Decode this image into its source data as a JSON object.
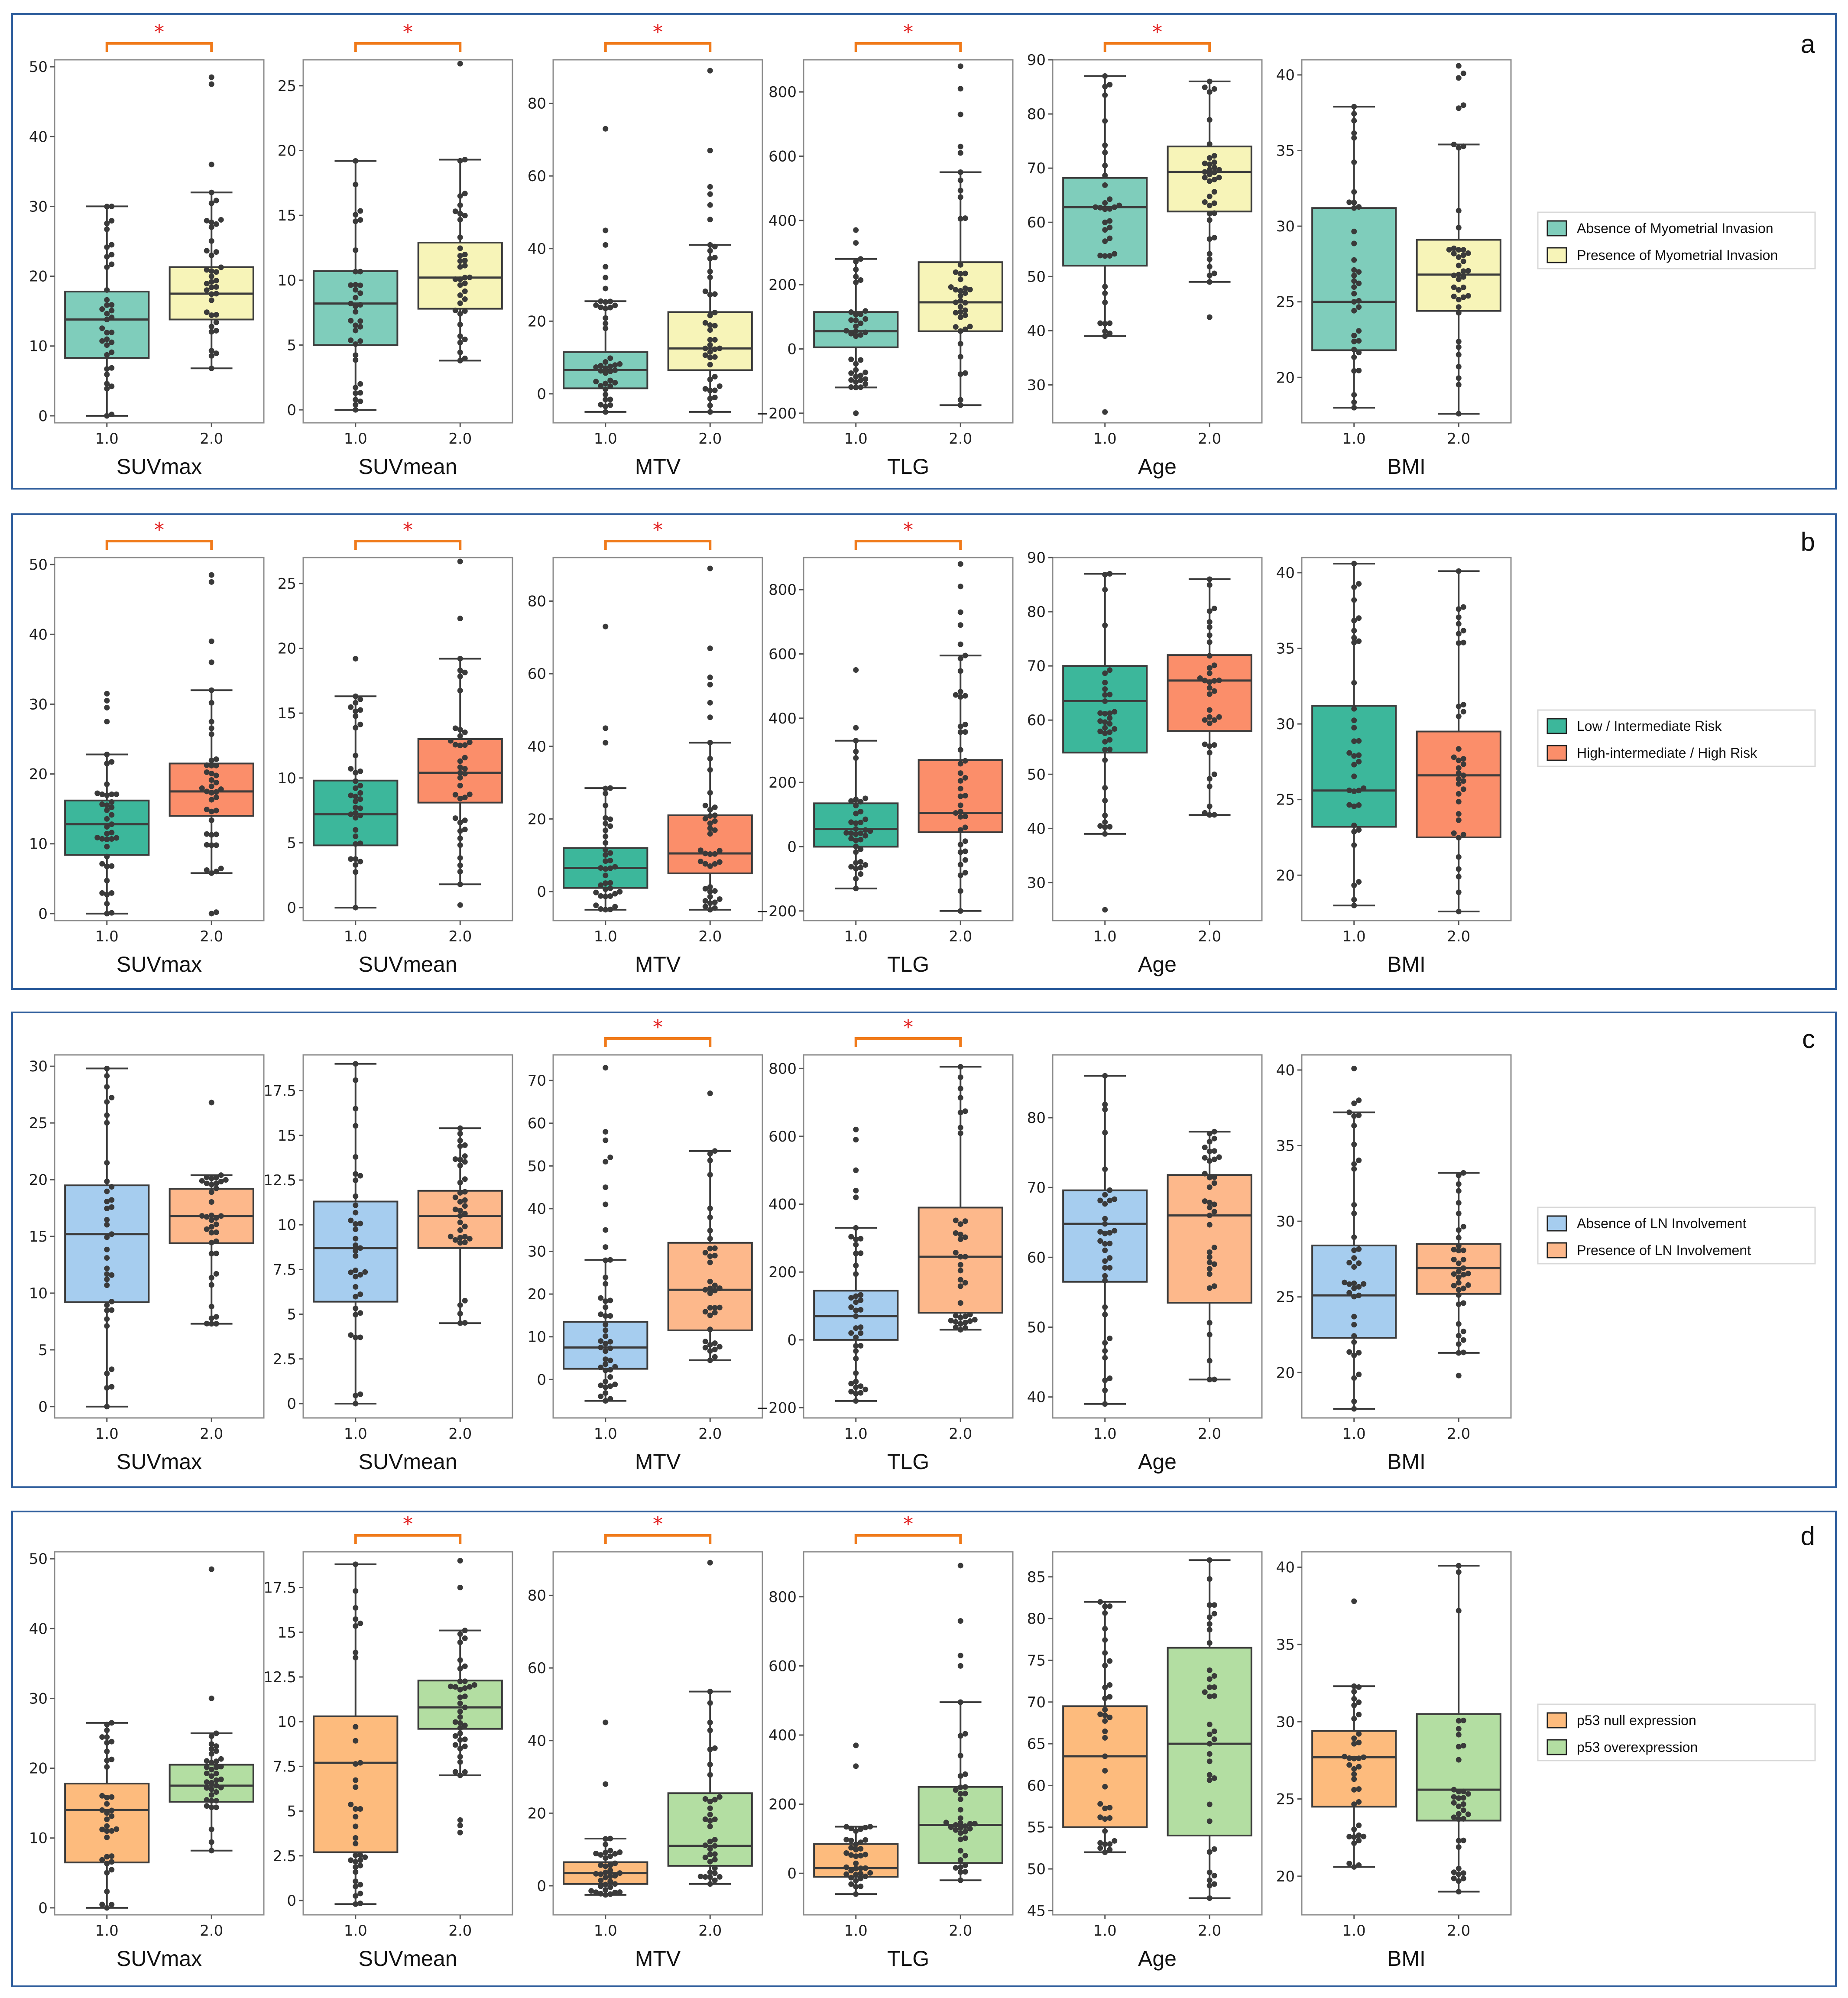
{
  "figure": {
    "rows": [
      {
        "letter": "a",
        "legend": [
          {
            "label": "Absence of Myometrial Invasion",
            "color": "#7fcdbb"
          },
          {
            "label": "Presence of Myometrial Invasion",
            "color": "#f7f4b8"
          }
        ],
        "significance": [
          true,
          true,
          true,
          true,
          true,
          false
        ]
      },
      {
        "letter": "b",
        "legend": [
          {
            "label": "Low / Intermediate Risk",
            "color": "#3cb79b"
          },
          {
            "label": "High-intermediate / High Risk",
            "color": "#fb8e6a"
          }
        ],
        "significance": [
          true,
          true,
          true,
          true,
          false,
          false
        ]
      },
      {
        "letter": "c",
        "legend": [
          {
            "label": "Absence of LN Involvement",
            "color": "#a6cdef"
          },
          {
            "label": "Presence of LN Involvement",
            "color": "#fdb88b"
          }
        ],
        "significance": [
          false,
          false,
          true,
          true,
          false,
          false
        ]
      },
      {
        "letter": "d",
        "legend": [
          {
            "label": "p53 null expression",
            "color": "#fdbb7d"
          },
          {
            "label": "p53 overexpression",
            "color": "#b3dea2"
          }
        ],
        "significance": [
          false,
          true,
          true,
          true,
          false,
          false
        ]
      }
    ],
    "star": "*",
    "category_labels": [
      "1.0",
      "2.0"
    ]
  },
  "chart_data": [
    {
      "row": "a",
      "type": "box",
      "title": "SUVmax",
      "categories": [
        "1.0",
        "2.0"
      ],
      "ylim": [
        -1,
        51
      ],
      "yticks": [
        0,
        10,
        20,
        30,
        40,
        50
      ],
      "boxes": [
        {
          "whislo": 0,
          "q1": 8.3,
          "med": 13.8,
          "q3": 17.8,
          "whishi": 30,
          "fliers": []
        },
        {
          "whislo": 6.8,
          "q1": 13.8,
          "med": 17.5,
          "q3": 21.3,
          "whishi": 32,
          "fliers": [
            36,
            47.5,
            48.5
          ]
        }
      ]
    },
    {
      "row": "a",
      "type": "box",
      "title": "SUVmean",
      "categories": [
        "1.0",
        "2.0"
      ],
      "ylim": [
        -1,
        27
      ],
      "yticks": [
        0,
        5,
        10,
        15,
        20,
        25
      ],
      "boxes": [
        {
          "whislo": 0,
          "q1": 5,
          "med": 8.2,
          "q3": 10.7,
          "whishi": 19.2,
          "fliers": []
        },
        {
          "whislo": 3.8,
          "q1": 7.8,
          "med": 10.2,
          "q3": 12.9,
          "whishi": 19.3,
          "fliers": [
            26.7
          ]
        }
      ]
    },
    {
      "row": "a",
      "type": "box",
      "title": "MTV",
      "categories": [
        "1.0",
        "2.0"
      ],
      "ylim": [
        -8,
        92
      ],
      "yticks": [
        0,
        20,
        40,
        60,
        80
      ],
      "boxes": [
        {
          "whislo": -5,
          "q1": 1.5,
          "med": 6.5,
          "q3": 11.5,
          "whishi": 25.5,
          "fliers": [
            29,
            32,
            35,
            41,
            45,
            73
          ]
        },
        {
          "whislo": -5,
          "q1": 6.5,
          "med": 12.5,
          "q3": 22.5,
          "whishi": 41,
          "fliers": [
            48,
            52,
            55,
            57,
            67,
            89
          ]
        }
      ]
    },
    {
      "row": "a",
      "type": "box",
      "title": "TLG",
      "categories": [
        "1.0",
        "2.0"
      ],
      "ylim": [
        -230,
        900
      ],
      "yticks": [
        -200,
        0,
        200,
        400,
        600,
        800
      ],
      "boxes": [
        {
          "whislo": -120,
          "q1": 5,
          "med": 55,
          "q3": 115,
          "whishi": 280,
          "fliers": [
            -200,
            330,
            370
          ]
        },
        {
          "whislo": -175,
          "q1": 55,
          "med": 145,
          "q3": 270,
          "whishi": 550,
          "fliers": [
            610,
            630,
            730,
            810,
            880
          ]
        }
      ]
    },
    {
      "row": "a",
      "type": "box",
      "title": "Age",
      "categories": [
        "1.0",
        "2.0"
      ],
      "ylim": [
        23,
        90
      ],
      "yticks": [
        30,
        40,
        50,
        60,
        70,
        80,
        90
      ],
      "boxes": [
        {
          "whislo": 39,
          "q1": 52,
          "med": 62.8,
          "q3": 68.2,
          "whishi": 87,
          "fliers": [
            25
          ]
        },
        {
          "whislo": 49,
          "q1": 62,
          "med": 69.3,
          "q3": 74,
          "whishi": 86,
          "fliers": [
            42.5
          ]
        }
      ]
    },
    {
      "row": "a",
      "type": "box",
      "title": "BMI",
      "categories": [
        "1.0",
        "2.0"
      ],
      "ylim": [
        17,
        41
      ],
      "yticks": [
        20,
        25,
        30,
        35,
        40
      ],
      "boxes": [
        {
          "whislo": 18,
          "q1": 21.8,
          "med": 25,
          "q3": 31.2,
          "whishi": 37.9,
          "fliers": []
        },
        {
          "whislo": 17.6,
          "q1": 24.4,
          "med": 26.8,
          "q3": 29.1,
          "whishi": 35.4,
          "fliers": [
            37.8,
            38,
            39.8,
            40.1,
            40.6
          ]
        }
      ]
    },
    {
      "row": "b",
      "type": "box",
      "title": "SUVmax",
      "categories": [
        "1.0",
        "2.0"
      ],
      "ylim": [
        -1,
        51
      ],
      "yticks": [
        0,
        10,
        20,
        30,
        40,
        50
      ],
      "boxes": [
        {
          "whislo": 0,
          "q1": 8.4,
          "med": 12.8,
          "q3": 16.2,
          "whishi": 22.8,
          "fliers": [
            27.5,
            29.5,
            30.5,
            31.5
          ]
        },
        {
          "whislo": 5.8,
          "q1": 14,
          "med": 17.5,
          "q3": 21.5,
          "whishi": 32,
          "fliers": [
            0,
            0.2,
            36,
            39,
            47.5,
            48.5
          ]
        }
      ]
    },
    {
      "row": "b",
      "type": "box",
      "title": "SUVmean",
      "categories": [
        "1.0",
        "2.0"
      ],
      "ylim": [
        -1,
        27
      ],
      "yticks": [
        0,
        5,
        10,
        15,
        20,
        25
      ],
      "boxes": [
        {
          "whislo": 0,
          "q1": 4.8,
          "med": 7.2,
          "q3": 9.8,
          "whishi": 16.3,
          "fliers": [
            19.2
          ]
        },
        {
          "whislo": 1.8,
          "q1": 8.1,
          "med": 10.4,
          "q3": 13,
          "whishi": 19.2,
          "fliers": [
            0.2,
            22.3,
            26.7
          ]
        }
      ]
    },
    {
      "row": "b",
      "type": "box",
      "title": "MTV",
      "categories": [
        "1.0",
        "2.0"
      ],
      "ylim": [
        -8,
        92
      ],
      "yticks": [
        0,
        20,
        40,
        60,
        80
      ],
      "boxes": [
        {
          "whislo": -5,
          "q1": 1,
          "med": 6.5,
          "q3": 12,
          "whishi": 28.5,
          "fliers": [
            41,
            45,
            73
          ]
        },
        {
          "whislo": -5,
          "q1": 5,
          "med": 10.5,
          "q3": 21,
          "whishi": 41,
          "fliers": [
            48,
            52,
            57,
            59,
            67,
            89
          ]
        }
      ]
    },
    {
      "row": "b",
      "type": "box",
      "title": "TLG",
      "categories": [
        "1.0",
        "2.0"
      ],
      "ylim": [
        -230,
        900
      ],
      "yticks": [
        -200,
        0,
        200,
        400,
        600,
        800
      ],
      "boxes": [
        {
          "whislo": -130,
          "q1": 0,
          "med": 55,
          "q3": 135,
          "whishi": 330,
          "fliers": [
            370,
            550
          ]
        },
        {
          "whislo": -200,
          "q1": 45,
          "med": 105,
          "q3": 270,
          "whishi": 595,
          "fliers": [
            630,
            690,
            730,
            810,
            880
          ]
        }
      ]
    },
    {
      "row": "b",
      "type": "box",
      "title": "Age",
      "categories": [
        "1.0",
        "2.0"
      ],
      "ylim": [
        23,
        90
      ],
      "yticks": [
        30,
        40,
        50,
        60,
        70,
        80,
        90
      ],
      "boxes": [
        {
          "whislo": 39,
          "q1": 54,
          "med": 63.5,
          "q3": 70,
          "whishi": 87,
          "fliers": [
            25
          ]
        },
        {
          "whislo": 42.5,
          "q1": 58,
          "med": 67.3,
          "q3": 72,
          "whishi": 86,
          "fliers": []
        }
      ]
    },
    {
      "row": "b",
      "type": "box",
      "title": "BMI",
      "categories": [
        "1.0",
        "2.0"
      ],
      "ylim": [
        17,
        41
      ],
      "yticks": [
        20,
        25,
        30,
        35,
        40
      ],
      "boxes": [
        {
          "whislo": 18,
          "q1": 23.2,
          "med": 25.6,
          "q3": 31.2,
          "whishi": 40.6,
          "fliers": []
        },
        {
          "whislo": 17.6,
          "q1": 22.5,
          "med": 26.6,
          "q3": 29.5,
          "whishi": 40.1,
          "fliers": []
        }
      ]
    },
    {
      "row": "c",
      "type": "box",
      "title": "SUVmax",
      "categories": [
        "1.0",
        "2.0"
      ],
      "ylim": [
        -1,
        31
      ],
      "yticks": [
        0,
        5,
        10,
        15,
        20,
        25,
        30
      ],
      "boxes": [
        {
          "whislo": 0,
          "q1": 9.2,
          "med": 15.2,
          "q3": 19.5,
          "whishi": 29.8,
          "fliers": []
        },
        {
          "whislo": 7.3,
          "q1": 14.4,
          "med": 16.8,
          "q3": 19.2,
          "whishi": 20.4,
          "fliers": [
            26.8
          ]
        }
      ]
    },
    {
      "row": "c",
      "type": "box",
      "title": "SUVmean",
      "categories": [
        "1.0",
        "2.0"
      ],
      "ylim": [
        -0.8,
        19.5
      ],
      "yticks": [
        0,
        2.5,
        5,
        7.5,
        10,
        12.5,
        15,
        17.5
      ],
      "boxes": [
        {
          "whislo": 0,
          "q1": 5.7,
          "med": 8.7,
          "q3": 11.3,
          "whishi": 19,
          "fliers": []
        },
        {
          "whislo": 4.5,
          "q1": 8.7,
          "med": 10.5,
          "q3": 11.9,
          "whishi": 15.4,
          "fliers": []
        }
      ]
    },
    {
      "row": "c",
      "type": "box",
      "title": "MTV",
      "categories": [
        "1.0",
        "2.0"
      ],
      "ylim": [
        -9,
        76
      ],
      "yticks": [
        0,
        10,
        20,
        30,
        40,
        50,
        60,
        70
      ],
      "boxes": [
        {
          "whislo": -5,
          "q1": 2.5,
          "med": 7.5,
          "q3": 13.5,
          "whishi": 28,
          "fliers": [
            31,
            35,
            41,
            45,
            51,
            52,
            56,
            58,
            73
          ]
        },
        {
          "whislo": 4.5,
          "q1": 11.5,
          "med": 21,
          "q3": 32,
          "whishi": 53.5,
          "fliers": [
            67
          ]
        }
      ]
    },
    {
      "row": "c",
      "type": "box",
      "title": "TLG",
      "categories": [
        "1.0",
        "2.0"
      ],
      "ylim": [
        -230,
        840
      ],
      "yticks": [
        -200,
        0,
        200,
        400,
        600,
        800
      ],
      "boxes": [
        {
          "whislo": -180,
          "q1": 0,
          "med": 70,
          "q3": 145,
          "whishi": 330,
          "fliers": [
            420,
            440,
            500,
            590,
            620
          ]
        },
        {
          "whislo": 30,
          "q1": 80,
          "med": 245,
          "q3": 390,
          "whishi": 805,
          "fliers": []
        }
      ]
    },
    {
      "row": "c",
      "type": "box",
      "title": "Age",
      "categories": [
        "1.0",
        "2.0"
      ],
      "ylim": [
        37,
        89
      ],
      "yticks": [
        40,
        50,
        60,
        70,
        80
      ],
      "boxes": [
        {
          "whislo": 39,
          "q1": 56.5,
          "med": 64.8,
          "q3": 69.6,
          "whishi": 86,
          "fliers": []
        },
        {
          "whislo": 42.5,
          "q1": 53.5,
          "med": 66,
          "q3": 71.8,
          "whishi": 78,
          "fliers": []
        }
      ]
    },
    {
      "row": "c",
      "type": "box",
      "title": "BMI",
      "categories": [
        "1.0",
        "2.0"
      ],
      "ylim": [
        17,
        41
      ],
      "yticks": [
        20,
        25,
        30,
        35,
        40
      ],
      "boxes": [
        {
          "whislo": 17.6,
          "q1": 22.3,
          "med": 25.1,
          "q3": 28.4,
          "whishi": 37.2,
          "fliers": [
            37.8,
            38,
            40.1
          ]
        },
        {
          "whislo": 21.3,
          "q1": 25.2,
          "med": 26.9,
          "q3": 28.5,
          "whishi": 33.2,
          "fliers": [
            19.8
          ]
        }
      ]
    },
    {
      "row": "d",
      "type": "box",
      "title": "SUVmax",
      "categories": [
        "1.0",
        "2.0"
      ],
      "ylim": [
        -1,
        51
      ],
      "yticks": [
        0,
        10,
        20,
        30,
        40,
        50
      ],
      "boxes": [
        {
          "whislo": 0,
          "q1": 6.5,
          "med": 14,
          "q3": 17.8,
          "whishi": 26.5,
          "fliers": []
        },
        {
          "whislo": 8.2,
          "q1": 15.2,
          "med": 17.5,
          "q3": 20.5,
          "whishi": 25,
          "fliers": [
            30,
            48.5
          ]
        }
      ]
    },
    {
      "row": "d",
      "type": "box",
      "title": "SUVmean",
      "categories": [
        "1.0",
        "2.0"
      ],
      "ylim": [
        -0.8,
        19.5
      ],
      "yticks": [
        0,
        2.5,
        5,
        7.5,
        10,
        12.5,
        15,
        17.5
      ],
      "boxes": [
        {
          "whislo": -0.2,
          "q1": 2.7,
          "med": 7.7,
          "q3": 10.3,
          "whishi": 18.8,
          "fliers": []
        },
        {
          "whislo": 7,
          "q1": 9.6,
          "med": 10.8,
          "q3": 12.3,
          "whishi": 15.1,
          "fliers": [
            3.8,
            4.2,
            4.5,
            17.5,
            19
          ]
        }
      ]
    },
    {
      "row": "d",
      "type": "box",
      "title": "MTV",
      "categories": [
        "1.0",
        "2.0"
      ],
      "ylim": [
        -8,
        92
      ],
      "yticks": [
        0,
        20,
        40,
        60,
        80
      ],
      "boxes": [
        {
          "whislo": -2.5,
          "q1": 0.5,
          "med": 3.5,
          "q3": 6.5,
          "whishi": 13,
          "fliers": [
            28,
            45
          ]
        },
        {
          "whislo": 0.5,
          "q1": 5.5,
          "med": 11,
          "q3": 25.5,
          "whishi": 53.5,
          "fliers": [
            89
          ]
        }
      ]
    },
    {
      "row": "d",
      "type": "box",
      "title": "TLG",
      "categories": [
        "1.0",
        "2.0"
      ],
      "ylim": [
        -120,
        930
      ],
      "yticks": [
        0,
        200,
        400,
        600,
        800
      ],
      "boxes": [
        {
          "whislo": -60,
          "q1": -10,
          "med": 15,
          "q3": 85,
          "whishi": 135,
          "fliers": [
            310,
            370
          ]
        },
        {
          "whislo": -20,
          "q1": 30,
          "med": 140,
          "q3": 250,
          "whishi": 495,
          "fliers": [
            600,
            630,
            730,
            890
          ]
        }
      ]
    },
    {
      "row": "d",
      "type": "box",
      "title": "Age",
      "categories": [
        "1.0",
        "2.0"
      ],
      "ylim": [
        44.5,
        88
      ],
      "yticks": [
        45,
        50,
        55,
        60,
        65,
        70,
        75,
        80,
        85
      ],
      "boxes": [
        {
          "whislo": 52,
          "q1": 55,
          "med": 63.5,
          "q3": 69.5,
          "whishi": 82,
          "fliers": []
        },
        {
          "whislo": 46.5,
          "q1": 54,
          "med": 65,
          "q3": 76.5,
          "whishi": 87,
          "fliers": []
        }
      ]
    },
    {
      "row": "d",
      "type": "box",
      "title": "BMI",
      "categories": [
        "1.0",
        "2.0"
      ],
      "ylim": [
        17.5,
        41
      ],
      "yticks": [
        20,
        25,
        30,
        35,
        40
      ],
      "boxes": [
        {
          "whislo": 20.6,
          "q1": 24.5,
          "med": 27.7,
          "q3": 29.4,
          "whishi": 32.3,
          "fliers": [
            37.8
          ]
        },
        {
          "whislo": 19,
          "q1": 23.6,
          "med": 25.6,
          "q3": 30.5,
          "whishi": 40.1,
          "fliers": []
        }
      ]
    }
  ]
}
